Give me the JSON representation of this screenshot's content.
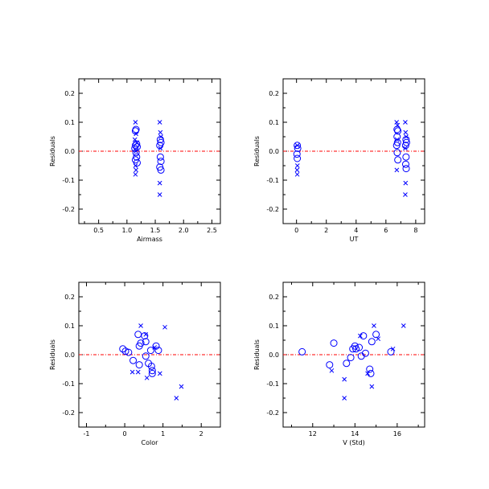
{
  "colors": {
    "marker": "#0000ff",
    "zero_line": "#ff0000",
    "axis": "#000000"
  },
  "chart_data": [
    {
      "type": "scatter",
      "xlabel": "Airmass",
      "ylabel": "Residuals",
      "xlim": [
        0.15,
        2.65
      ],
      "ylim": [
        -0.25,
        0.25
      ],
      "xticks": [
        0.5,
        1.0,
        1.5,
        2.0,
        2.5
      ],
      "xticklabels": [
        "0.5",
        "1.0",
        "1.5",
        "2.0",
        "2.5"
      ],
      "yticks": [
        -0.2,
        -0.1,
        0.0,
        0.1,
        0.2
      ],
      "yticklabels": [
        "-0.2",
        "-0.1",
        "0.0",
        "0.1",
        "0.2"
      ],
      "reference_line_y": 0.0,
      "series": [
        {
          "marker": "circle",
          "points": [
            [
              1.16,
              0.075
            ],
            [
              1.15,
              0.07
            ],
            [
              1.17,
              0.025
            ],
            [
              1.15,
              0.02
            ],
            [
              1.18,
              0.015
            ],
            [
              1.14,
              0.01
            ],
            [
              1.16,
              -0.005
            ],
            [
              1.17,
              -0.02
            ],
            [
              1.15,
              -0.03
            ],
            [
              1.18,
              -0.04
            ],
            [
              1.59,
              0.04
            ],
            [
              1.6,
              0.03
            ],
            [
              1.58,
              0.02
            ],
            [
              1.59,
              -0.02
            ],
            [
              1.6,
              -0.035
            ],
            [
              1.58,
              -0.055
            ],
            [
              1.6,
              -0.065
            ]
          ]
        },
        {
          "marker": "x",
          "points": [
            [
              1.15,
              0.1
            ],
            [
              1.16,
              0.06
            ],
            [
              1.14,
              0.04
            ],
            [
              1.18,
              0.03
            ],
            [
              1.16,
              0.0
            ],
            [
              1.15,
              -0.05
            ],
            [
              1.16,
              -0.065
            ],
            [
              1.15,
              -0.08
            ],
            [
              1.58,
              0.1
            ],
            [
              1.59,
              0.065
            ],
            [
              1.6,
              0.05
            ],
            [
              1.59,
              0.01
            ],
            [
              1.58,
              -0.11
            ],
            [
              1.58,
              -0.15
            ]
          ]
        }
      ]
    },
    {
      "type": "scatter",
      "xlabel": "UT",
      "ylabel": "Residuals",
      "xlim": [
        -0.9,
        8.6
      ],
      "ylim": [
        -0.25,
        0.25
      ],
      "xticks": [
        0,
        2,
        4,
        6,
        8
      ],
      "xticklabels": [
        "0",
        "2",
        "4",
        "6",
        "8"
      ],
      "yticks": [
        -0.2,
        -0.1,
        0.0,
        0.1,
        0.2
      ],
      "yticklabels": [
        "-0.2",
        "-0.1",
        "0.0",
        "0.1",
        "0.2"
      ],
      "reference_line_y": 0.0,
      "series": [
        {
          "marker": "circle",
          "points": [
            [
              0.05,
              0.02
            ],
            [
              0.08,
              0.01
            ],
            [
              0.03,
              -0.01
            ],
            [
              0.05,
              -0.025
            ],
            [
              6.75,
              0.075
            ],
            [
              6.8,
              0.07
            ],
            [
              6.75,
              0.05
            ],
            [
              6.78,
              0.03
            ],
            [
              6.72,
              0.02
            ],
            [
              6.76,
              -0.005
            ],
            [
              6.8,
              -0.03
            ],
            [
              7.35,
              0.04
            ],
            [
              7.38,
              0.03
            ],
            [
              7.32,
              0.02
            ],
            [
              7.35,
              -0.02
            ],
            [
              7.33,
              -0.045
            ],
            [
              7.36,
              -0.06
            ]
          ]
        },
        {
          "marker": "x",
          "points": [
            [
              0.05,
              0.02
            ],
            [
              0.06,
              -0.05
            ],
            [
              0.04,
              -0.065
            ],
            [
              0.05,
              -0.08
            ],
            [
              6.72,
              0.1
            ],
            [
              6.78,
              0.09
            ],
            [
              6.75,
              0.04
            ],
            [
              6.73,
              -0.065
            ],
            [
              7.3,
              0.1
            ],
            [
              7.32,
              0.065
            ],
            [
              7.36,
              0.05
            ],
            [
              7.3,
              0.01
            ],
            [
              7.32,
              -0.11
            ],
            [
              7.3,
              -0.15
            ]
          ]
        }
      ]
    },
    {
      "type": "scatter",
      "xlabel": "Color",
      "ylabel": "Residuals",
      "xlim": [
        -1.2,
        2.5
      ],
      "ylim": [
        -0.25,
        0.25
      ],
      "xticks": [
        -1,
        0,
        1,
        2
      ],
      "xticklabels": [
        "-1",
        "0",
        "1",
        "2"
      ],
      "yticks": [
        -0.2,
        -0.1,
        0.0,
        0.1,
        0.2
      ],
      "yticklabels": [
        "-0.2",
        "-0.1",
        "0.0",
        "0.1",
        "0.2"
      ],
      "reference_line_y": 0.0,
      "series": [
        {
          "marker": "circle",
          "points": [
            [
              -0.05,
              0.02
            ],
            [
              0.02,
              0.012
            ],
            [
              0.1,
              0.008
            ],
            [
              0.35,
              0.07
            ],
            [
              0.52,
              0.065
            ],
            [
              0.55,
              0.045
            ],
            [
              0.42,
              0.04
            ],
            [
              0.38,
              0.03
            ],
            [
              0.68,
              0.015
            ],
            [
              0.82,
              0.03
            ],
            [
              0.88,
              0.015
            ],
            [
              0.55,
              -0.005
            ],
            [
              0.22,
              -0.02
            ],
            [
              0.38,
              -0.035
            ],
            [
              0.62,
              -0.03
            ],
            [
              0.7,
              -0.04
            ],
            [
              0.72,
              -0.055
            ],
            [
              0.72,
              -0.065
            ]
          ]
        },
        {
          "marker": "x",
          "points": [
            [
              0.42,
              0.1
            ],
            [
              1.05,
              0.095
            ],
            [
              0.55,
              0.07
            ],
            [
              0.78,
              0.025
            ],
            [
              0.2,
              -0.06
            ],
            [
              0.35,
              -0.06
            ],
            [
              0.58,
              -0.08
            ],
            [
              0.92,
              -0.065
            ],
            [
              1.48,
              -0.11
            ],
            [
              1.35,
              -0.15
            ]
          ]
        }
      ]
    },
    {
      "type": "scatter",
      "xlabel": "V (Std)",
      "ylabel": "Residuals",
      "xlim": [
        10.6,
        17.3
      ],
      "ylim": [
        -0.25,
        0.25
      ],
      "xticks": [
        12,
        14,
        16
      ],
      "xticklabels": [
        "12",
        "14",
        "16"
      ],
      "yticks": [
        -0.2,
        -0.1,
        0.0,
        0.1,
        0.2
      ],
      "yticklabels": [
        "-0.2",
        "-0.1",
        "0.0",
        "0.1",
        "0.2"
      ],
      "reference_line_y": 0.0,
      "series": [
        {
          "marker": "circle",
          "points": [
            [
              11.5,
              0.01
            ],
            [
              12.8,
              -0.035
            ],
            [
              13.0,
              0.04
            ],
            [
              13.6,
              -0.03
            ],
            [
              13.8,
              -0.01
            ],
            [
              13.9,
              0.02
            ],
            [
              14.0,
              0.03
            ],
            [
              14.05,
              0.02
            ],
            [
              14.2,
              0.025
            ],
            [
              14.3,
              -0.005
            ],
            [
              14.4,
              0.065
            ],
            [
              14.5,
              0.005
            ],
            [
              14.7,
              -0.05
            ],
            [
              14.75,
              -0.065
            ],
            [
              14.8,
              0.045
            ],
            [
              15.0,
              0.07
            ],
            [
              15.7,
              0.01
            ]
          ]
        },
        {
          "marker": "x",
          "points": [
            [
              12.9,
              -0.055
            ],
            [
              13.5,
              -0.085
            ],
            [
              14.25,
              0.065
            ],
            [
              13.5,
              -0.15
            ],
            [
              14.6,
              -0.065
            ],
            [
              14.8,
              -0.11
            ],
            [
              14.9,
              0.1
            ],
            [
              15.1,
              0.055
            ],
            [
              15.8,
              0.02
            ],
            [
              16.3,
              0.1
            ]
          ]
        }
      ]
    }
  ]
}
